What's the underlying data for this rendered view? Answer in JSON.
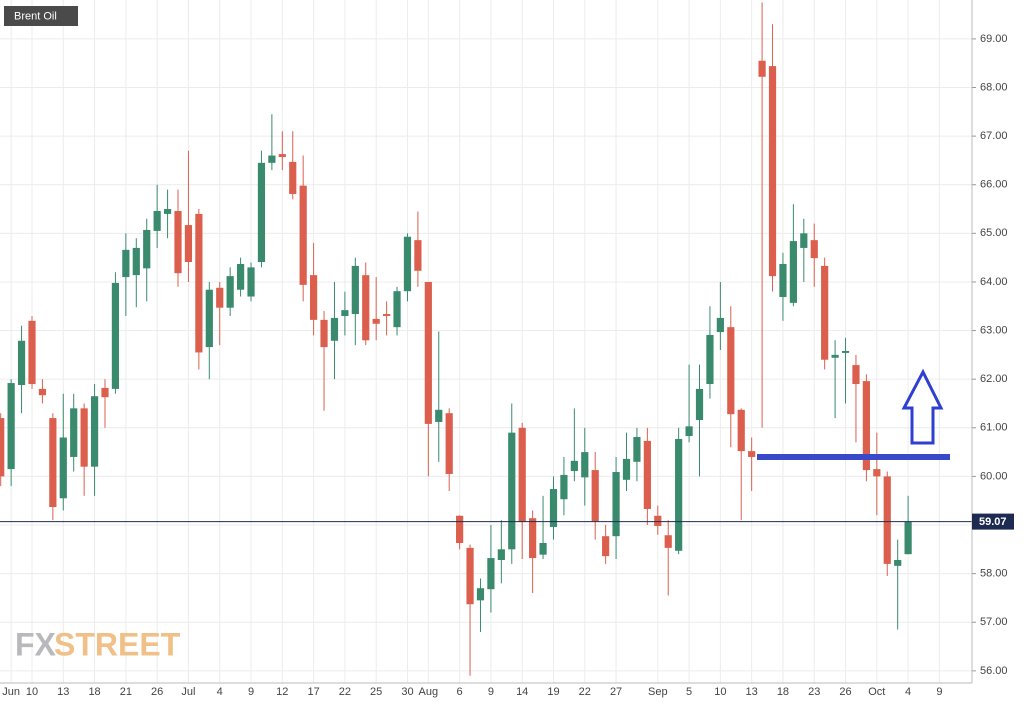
{
  "chart_data": {
    "type": "candlestick",
    "title": "Brent Oil",
    "logo": [
      "FX",
      "STREET"
    ],
    "categories": [
      null,
      "Jun",
      null,
      "10",
      null,
      null,
      "13",
      null,
      null,
      "18",
      null,
      null,
      "21",
      null,
      null,
      "26",
      null,
      null,
      "Jul",
      null,
      null,
      "4",
      null,
      null,
      "9",
      null,
      null,
      "12",
      null,
      null,
      "17",
      null,
      null,
      "22",
      null,
      null,
      "25",
      null,
      null,
      "30",
      null,
      "Aug",
      null,
      null,
      "6",
      null,
      null,
      "9",
      null,
      null,
      "14",
      null,
      null,
      "19",
      null,
      null,
      "22",
      null,
      null,
      "27",
      null,
      null,
      null,
      "Sep",
      null,
      null,
      "5",
      null,
      null,
      "10",
      null,
      null,
      "13",
      null,
      null,
      "18",
      null,
      null,
      "23",
      null,
      null,
      "26",
      null,
      null,
      "Oct",
      null,
      null,
      "4",
      null,
      null,
      "9"
    ],
    "open": [
      61.2,
      60.15,
      61.88,
      63.2,
      61.8,
      61.2,
      59.55,
      60.4,
      61.4,
      60.2,
      61.82,
      61.8,
      64.1,
      64.14,
      64.28,
      65.05,
      65.4,
      65.46,
      65.17,
      65.4,
      62.66,
      63.88,
      63.47,
      63.84,
      63.7,
      64.41,
      66.45,
      66.63,
      66.47,
      65.98,
      64.14,
      63.22,
      62.79,
      63.3,
      63.34,
      64.14,
      63.24,
      63.34,
      63.07,
      63.81,
      64.86,
      64.0,
      61.12,
      61.3,
      59.19,
      58.53,
      57.45,
      57.68,
      58.28,
      58.5,
      61.0,
      59.14,
      58.39,
      58.96,
      59.53,
      60.11,
      59.98,
      60.13,
      58.77,
      58.77,
      59.93,
      60.3,
      60.73,
      59.19,
      58.79,
      58.47,
      60.83,
      61.16,
      61.9,
      62.97,
      63.07,
      61.37,
      60.52,
      68.55,
      68.44,
      63.69,
      63.57,
      64.7,
      64.86,
      64.33,
      62.44,
      62.54,
      62.29,
      61.96,
      60.15,
      60.0,
      58.16,
      58.4,
      null,
      null,
      null
    ],
    "high": [
      61.3,
      62.0,
      63.1,
      63.3,
      62.0,
      61.3,
      61.7,
      61.7,
      61.5,
      61.9,
      62.0,
      64.2,
      65.0,
      64.9,
      65.3,
      66.0,
      65.9,
      65.9,
      66.7,
      65.5,
      64.0,
      64.0,
      64.3,
      64.5,
      64.4,
      66.7,
      67.45,
      67.1,
      67.1,
      66.6,
      64.8,
      63.4,
      64.0,
      63.8,
      64.5,
      64.4,
      64.1,
      63.6,
      63.9,
      65.0,
      65.45,
      64.0,
      62.98,
      61.4,
      59.2,
      58.6,
      57.9,
      59.0,
      59.1,
      61.5,
      61.1,
      59.3,
      59.6,
      60.0,
      60.4,
      61.4,
      61.0,
      60.5,
      59.0,
      60.4,
      60.9,
      61.0,
      61.0,
      59.4,
      59.1,
      61.0,
      62.3,
      62.3,
      63.5,
      64.0,
      63.5,
      61.4,
      60.8,
      69.75,
      69.3,
      64.6,
      65.6,
      65.3,
      65.2,
      64.5,
      62.8,
      62.85,
      62.5,
      62.1,
      60.9,
      60.1,
      58.7,
      59.6,
      null,
      null,
      null
    ],
    "low": [
      59.8,
      59.8,
      61.3,
      61.8,
      61.5,
      59.1,
      59.3,
      60.1,
      59.6,
      59.6,
      61.0,
      61.7,
      63.3,
      63.48,
      63.6,
      64.7,
      64.9,
      63.9,
      64.0,
      62.2,
      62.0,
      62.7,
      63.3,
      63.7,
      63.6,
      64.3,
      66.3,
      66.3,
      65.7,
      63.6,
      62.9,
      61.35,
      62.0,
      62.9,
      62.7,
      62.7,
      62.8,
      62.9,
      62.9,
      63.6,
      63.9,
      60.0,
      60.3,
      59.7,
      58.5,
      55.9,
      56.8,
      57.2,
      57.8,
      58.2,
      58.3,
      57.6,
      58.3,
      58.7,
      59.2,
      59.9,
      59.4,
      58.7,
      58.2,
      58.3,
      59.7,
      59.9,
      59.0,
      58.8,
      57.55,
      58.4,
      60.7,
      60.0,
      61.6,
      62.6,
      60.6,
      59.1,
      59.7,
      61.0,
      63.8,
      63.2,
      63.5,
      64.0,
      63.9,
      62.2,
      61.2,
      61.5,
      60.7,
      59.9,
      59.2,
      57.95,
      56.85,
      58.4,
      null,
      null,
      null
    ],
    "close": [
      60.0,
      61.92,
      62.79,
      61.9,
      61.67,
      59.37,
      60.8,
      61.4,
      60.2,
      61.65,
      61.63,
      63.98,
      64.66,
      64.7,
      65.07,
      65.46,
      65.5,
      64.18,
      64.41,
      62.55,
      63.84,
      63.47,
      64.12,
      64.37,
      64.3,
      66.45,
      66.6,
      66.57,
      65.81,
      63.94,
      63.22,
      62.66,
      63.26,
      63.42,
      64.33,
      62.8,
      63.14,
      63.3,
      63.81,
      64.93,
      64.23,
      61.08,
      61.37,
      60.05,
      58.63,
      57.37,
      57.7,
      58.32,
      58.5,
      60.9,
      59.06,
      58.32,
      58.63,
      59.74,
      60.03,
      60.32,
      60.5,
      59.08,
      58.36,
      60.09,
      60.36,
      60.81,
      59.33,
      58.98,
      58.53,
      60.77,
      61.03,
      61.8,
      62.91,
      63.26,
      61.28,
      60.52,
      60.4,
      68.22,
      64.12,
      64.37,
      64.84,
      65.0,
      64.49,
      62.4,
      62.5,
      62.58,
      61.9,
      60.13,
      60.0,
      58.2,
      58.28,
      59.07,
      null,
      null,
      null
    ],
    "up_color": "#3a8a6e",
    "down_color": "#dc5f4e",
    "last_price": 59.07,
    "ylim": [
      55.75,
      69.8
    ],
    "yticks": [
      {
        "value": 56,
        "label": "56.00"
      },
      {
        "value": 57,
        "label": "57.00"
      },
      {
        "value": 58,
        "label": "58.00"
      },
      {
        "value": 59,
        "label": "59.00"
      },
      {
        "value": 60,
        "label": "60.00"
      },
      {
        "value": 61,
        "label": "61.00"
      },
      {
        "value": 62,
        "label": "62.00"
      },
      {
        "value": 63,
        "label": "63.00"
      },
      {
        "value": 64,
        "label": "64.00"
      },
      {
        "value": 65,
        "label": "65.00"
      },
      {
        "value": 66,
        "label": "66.00"
      },
      {
        "value": 67,
        "label": "67.00"
      },
      {
        "value": 68,
        "label": "68.00"
      },
      {
        "value": 69,
        "label": "69.00"
      }
    ],
    "grid": true
  }
}
